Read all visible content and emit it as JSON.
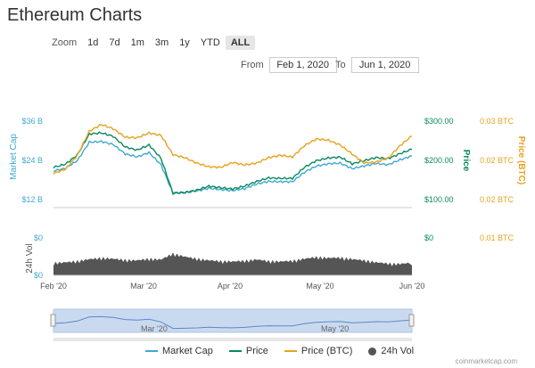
{
  "page": {
    "title": "Ethereum Charts",
    "credit": "coinmarketcap.com"
  },
  "zoom": {
    "label": "Zoom",
    "options": [
      "1d",
      "7d",
      "1m",
      "3m",
      "1y",
      "YTD",
      "ALL"
    ],
    "active": "ALL"
  },
  "range": {
    "from_label": "From",
    "from_value": "Feb 1, 2020",
    "to_label": "To",
    "to_value": "Jun 1, 2020"
  },
  "legend": {
    "market_cap": "Market Cap",
    "price": "Price",
    "price_btc": "Price (BTC)",
    "volume": "24h Vol"
  },
  "navigator": {
    "labels": [
      "Mar '20",
      "May '20"
    ]
  },
  "colors": {
    "market_cap": "#3fa8d2",
    "price": "#0a8a5c",
    "price_btc": "#e8a21e",
    "volume": "#555555",
    "navigator_fill": "#c9daf0"
  },
  "chart_data": {
    "type": "line",
    "x_ticks": [
      "Feb '20",
      "Mar '20",
      "Apr '20",
      "May '20",
      "Jun '20"
    ],
    "axes": {
      "market_cap": {
        "label": "Market Cap",
        "ticks": [
          "$12 B",
          "$24 B",
          "$36 B"
        ],
        "range": [
          12,
          36
        ],
        "unit": "B USD"
      },
      "price": {
        "label": "Price",
        "ticks": [
          "$100.00",
          "$200.00",
          "$300.00"
        ],
        "range": [
          100,
          300
        ]
      },
      "price_btc": {
        "label": "Price (BTC)",
        "ticks": [
          "0.02 BTC",
          "0.02 BTC",
          "0.03 BTC"
        ],
        "range": [
          0.0153,
          0.0283
        ]
      },
      "volume": {
        "label": "24h Vol",
        "ticks": [
          "$0",
          "$0"
        ],
        "right_ticks": [
          "$0",
          "0.01 BTC"
        ]
      }
    },
    "dates": [
      "Feb 1",
      "Feb 5",
      "Feb 9",
      "Feb 13",
      "Feb 17",
      "Feb 21",
      "Feb 25",
      "Feb 29",
      "Mar 4",
      "Mar 8",
      "Mar 12",
      "Mar 16",
      "Mar 20",
      "Mar 24",
      "Mar 28",
      "Apr 1",
      "Apr 5",
      "Apr 9",
      "Apr 13",
      "Apr 17",
      "Apr 21",
      "Apr 25",
      "Apr 29",
      "May 3",
      "May 7",
      "May 11",
      "May 15",
      "May 19",
      "May 23",
      "May 27",
      "Jun 1"
    ],
    "series": [
      {
        "name": "Market Cap",
        "axis": "market_cap",
        "values": [
          20.5,
          21.3,
          23.7,
          29.3,
          29.5,
          28.6,
          25.7,
          24.8,
          26.1,
          22.4,
          13.7,
          13.9,
          14.4,
          15.2,
          14.8,
          14.5,
          15.1,
          16.5,
          17.3,
          17.2,
          17.2,
          20.1,
          22.0,
          22.7,
          22.9,
          21.2,
          22.0,
          22.8,
          22.4,
          23.9,
          25.1
        ]
      },
      {
        "name": "Price",
        "axis": "price",
        "values": [
          180,
          188,
          212,
          265,
          268,
          259,
          232,
          224,
          237,
          203,
          114,
          116,
          122,
          132,
          128,
          125,
          132,
          144,
          153,
          152,
          152,
          180,
          197,
          204,
          206,
          189,
          197,
          205,
          202,
          215,
          226
        ]
      },
      {
        "name": "Price (BTC)",
        "axis": "price_btc",
        "values": [
          0.0195,
          0.0202,
          0.0225,
          0.0265,
          0.0276,
          0.0269,
          0.0255,
          0.0254,
          0.0262,
          0.0258,
          0.0226,
          0.0221,
          0.0212,
          0.0206,
          0.0205,
          0.0213,
          0.0209,
          0.0212,
          0.0221,
          0.0225,
          0.0222,
          0.0241,
          0.0252,
          0.025,
          0.0242,
          0.0227,
          0.0212,
          0.0214,
          0.022,
          0.0241,
          0.0257
        ]
      }
    ],
    "volume_relative": [
      0.48,
      0.52,
      0.58,
      0.68,
      0.74,
      0.7,
      0.64,
      0.62,
      0.7,
      0.66,
      0.96,
      0.8,
      0.7,
      0.62,
      0.58,
      0.56,
      0.6,
      0.66,
      0.58,
      0.56,
      0.6,
      0.7,
      0.78,
      0.74,
      0.76,
      0.68,
      0.62,
      0.52,
      0.46,
      0.44,
      0.5
    ],
    "grid": false
  }
}
